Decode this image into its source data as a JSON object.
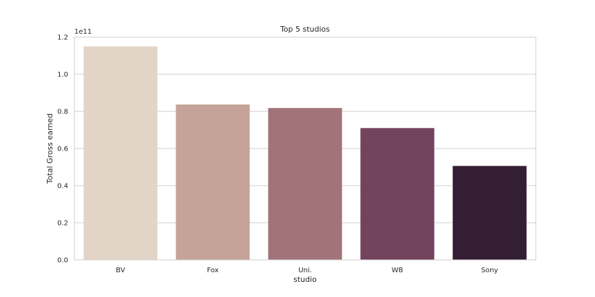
{
  "chart_data": {
    "type": "bar",
    "title": "Top 5 studios",
    "xlabel": "studio",
    "ylabel": "Total Gross earned",
    "scale_note": "1e11",
    "categories": [
      "BV",
      "Fox",
      "Uni.",
      "WB",
      "Sony"
    ],
    "values": [
      115000000000,
      83700000000,
      81800000000,
      71000000000,
      50600000000
    ],
    "colors": [
      "#e2d5c7",
      "#c5a398",
      "#a3737a",
      "#71435d",
      "#341e33"
    ],
    "ylim": [
      0,
      120000000000
    ],
    "yticks": [
      0,
      20000000000,
      40000000000,
      60000000000,
      80000000000,
      100000000000,
      120000000000
    ],
    "ytick_labels": [
      "0.0",
      "0.2",
      "0.4",
      "0.6",
      "0.8",
      "1.0",
      "1.2"
    ],
    "grid": true,
    "grid_axis": "y"
  }
}
